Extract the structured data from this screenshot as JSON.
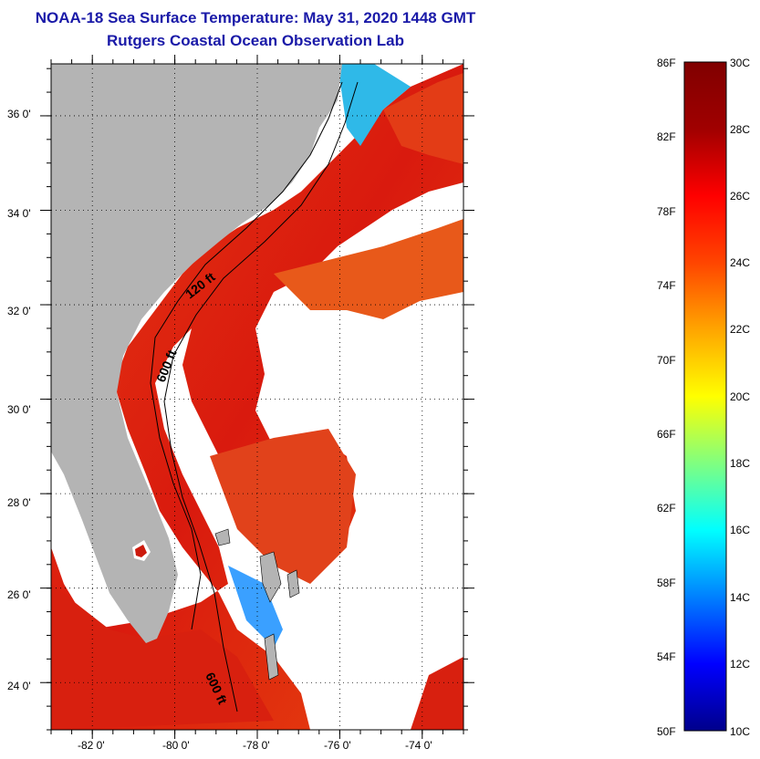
{
  "header": {
    "title_line1": "NOAA-18 Sea Surface Temperature:  May 31, 2020 1448 GMT",
    "title_line2": "Rutgers Coastal Ocean Observation Lab"
  },
  "map": {
    "lat_labels": [
      "36 0'",
      "34 0'",
      "32 0'",
      "30 0'",
      "28 0'",
      "26 0'",
      "24 0'"
    ],
    "lat_values": [
      36,
      34,
      32,
      30,
      28,
      26,
      24
    ],
    "lon_labels": [
      "-82 0'",
      "-80 0'",
      "-78 0'",
      "-76 0'",
      "-74 0'"
    ],
    "lon_values": [
      -82,
      -80,
      -78,
      -76,
      -74
    ],
    "lat_range": [
      23,
      37.1
    ],
    "lon_range": [
      -83,
      -73
    ],
    "contour_labels": [
      "120 ft",
      "600 ft",
      "600 ft"
    ],
    "colors": {
      "land": "#b4b4b4",
      "cloud": "#ffffff",
      "grid": "#000000"
    }
  },
  "colorbar": {
    "f_labels": [
      "86F",
      "82F",
      "78F",
      "74F",
      "70F",
      "66F",
      "62F",
      "58F",
      "54F",
      "50F"
    ],
    "c_labels": [
      "30C",
      "28C",
      "26C",
      "24C",
      "22C",
      "20C",
      "18C",
      "16C",
      "14C",
      "12C",
      "10C"
    ],
    "range_c": [
      10,
      30
    ],
    "gradient": [
      "#00008b",
      "#0000ff",
      "#0080ff",
      "#00ffff",
      "#80ff80",
      "#ffff00",
      "#ffa500",
      "#ff4500",
      "#ff0000",
      "#a00000",
      "#800000"
    ]
  }
}
